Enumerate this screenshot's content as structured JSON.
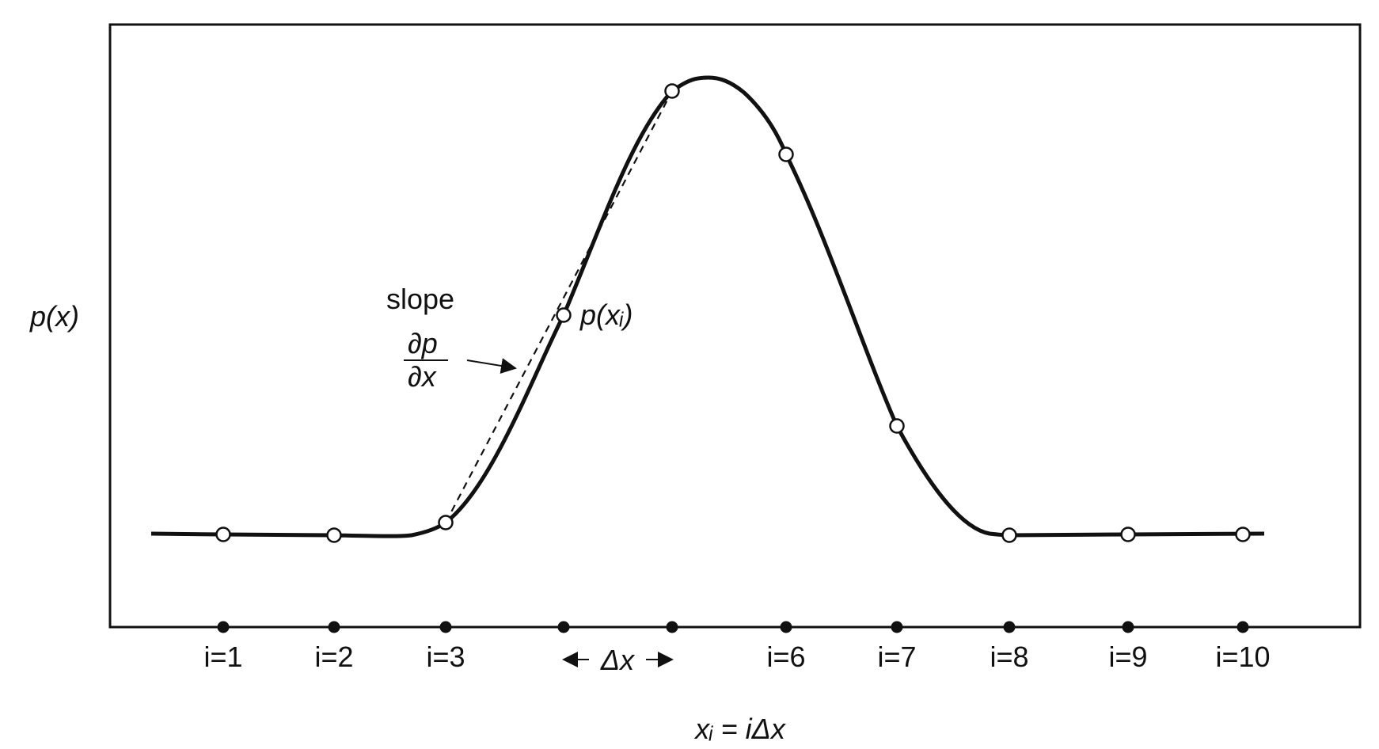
{
  "y_axis_label": "p(x)",
  "x_axis_label": "xᵢ = iΔx",
  "slope_label": "slope",
  "slope_fraction": {
    "numerator": "∂p",
    "denominator": "∂x"
  },
  "point_label": "p(xᵢ)",
  "grid_labels": [
    "i=1",
    "i=2",
    "i=3",
    "i=6",
    "i=7",
    "i=8",
    "i=9",
    "i=10"
  ],
  "spacing_label": "Δx",
  "colors": {
    "ink": "#111111",
    "marker_fill": "#ffffff",
    "background": "#ffffff"
  }
}
